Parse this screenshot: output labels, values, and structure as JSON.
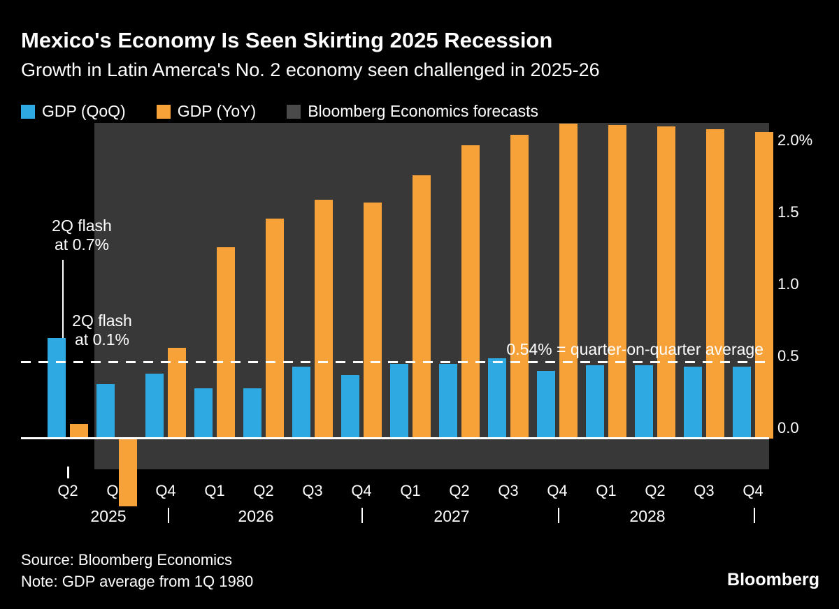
{
  "header": {
    "title": "Mexico's Economy Is Seen Skirting 2025 Recession",
    "subtitle": "Growth in Latin Amerca's No. 2 economy seen challenged in 2025-26"
  },
  "legend": [
    {
      "label": "GDP (QoQ)",
      "color": "#2FA9E1"
    },
    {
      "label": "GDP (YoY)",
      "color": "#F7A139"
    },
    {
      "label": "Bloomberg Economics forecasts",
      "color": "#4A4A4A"
    }
  ],
  "chart_data": {
    "type": "bar",
    "categories": [
      "Q2 2025",
      "Q3 2025",
      "Q4 2025",
      "Q1 2026",
      "Q2 2026",
      "Q3 2026",
      "Q4 2026",
      "Q1 2027",
      "Q2 2027",
      "Q3 2027",
      "Q4 2027",
      "Q1 2028",
      "Q2 2028",
      "Q3 2028",
      "Q4 2028"
    ],
    "quarter_labels": [
      "Q2",
      "Q3",
      "Q4",
      "Q1",
      "Q2",
      "Q3",
      "Q4",
      "Q1",
      "Q2",
      "Q3",
      "Q4",
      "Q1",
      "Q2",
      "Q3",
      "Q4"
    ],
    "year_labels": [
      "2025",
      "2026",
      "2027",
      "2028"
    ],
    "series": [
      {
        "name": "GDP (QoQ)",
        "color": "#2FA9E1",
        "values": [
          0.7,
          0.38,
          0.45,
          0.35,
          0.35,
          0.5,
          0.44,
          0.52,
          0.52,
          0.56,
          0.47,
          0.51,
          0.51,
          0.5,
          0.5
        ]
      },
      {
        "name": "GDP (YoY)",
        "color": "#F7A139",
        "values": [
          0.1,
          -0.47,
          0.63,
          1.33,
          1.53,
          1.66,
          1.64,
          1.83,
          2.04,
          2.11,
          2.19,
          2.18,
          2.17,
          2.15,
          2.13
        ]
      }
    ],
    "forecast": {
      "label": "Bloomberg Economics forecasts",
      "start_category": "Q3 2025",
      "region_color": "#383838"
    },
    "y_axis": {
      "ticks": [
        {
          "label": "2.0%",
          "value": 2.0
        },
        {
          "label": "1.5",
          "value": 1.5
        },
        {
          "label": "1.0",
          "value": 1.0
        },
        {
          "label": "0.5",
          "value": 0.5
        },
        {
          "label": "0.0",
          "value": 0.0
        }
      ],
      "range_shown": [
        -0.6,
        2.2
      ]
    },
    "average_line": {
      "value": 0.54,
      "label": "0.54% = quarter-on-quarter average"
    },
    "annotations": [
      {
        "id": "qoq-flash",
        "lines": [
          "2Q flash",
          "at 0.7%"
        ]
      },
      {
        "id": "yoy-flash",
        "lines": [
          "2Q flash",
          "at 0.1%"
        ]
      }
    ]
  },
  "footer": {
    "source": "Source: Bloomberg Economics",
    "note": "Note: GDP average from 1Q 1980",
    "brand": "Bloomberg"
  }
}
